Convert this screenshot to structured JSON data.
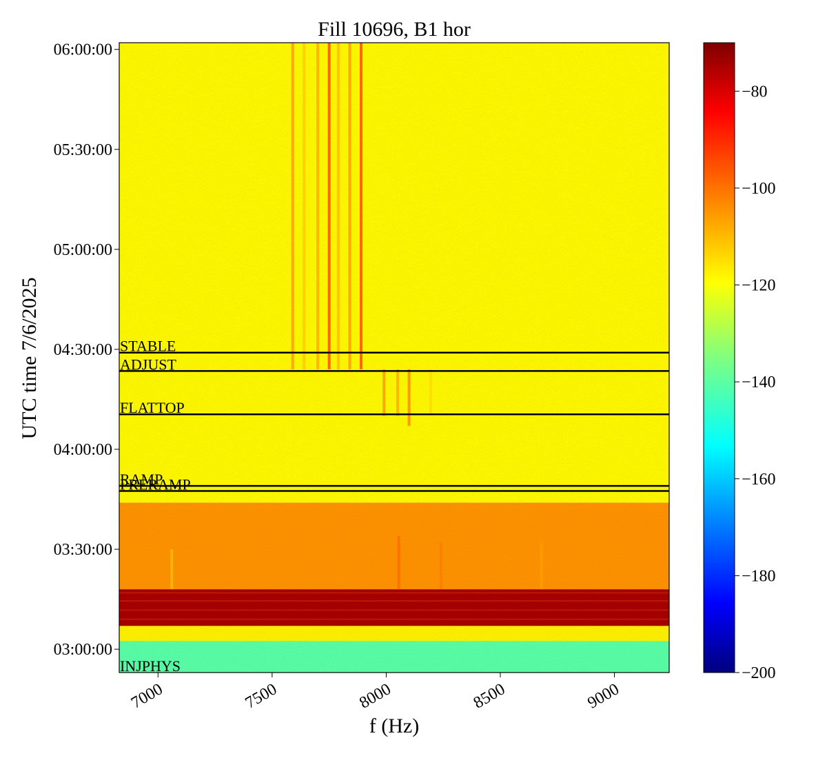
{
  "chart_data": {
    "type": "heatmap",
    "title": "Fill 10696, B1 hor",
    "xlabel": "f (Hz)",
    "ylabel": "UTC time 7/6/2025",
    "xlim": [
      6830,
      9240
    ],
    "ylim": [
      "02:53:00",
      "06:02:00"
    ],
    "x_ticks": [
      {
        "value": 7000,
        "label": "7000"
      },
      {
        "value": 7500,
        "label": "7500"
      },
      {
        "value": 8000,
        "label": "8000"
      },
      {
        "value": 8500,
        "label": "8500"
      },
      {
        "value": 9000,
        "label": "9000"
      }
    ],
    "y_ticks": [
      {
        "value": "03:00:00",
        "label": "03:00:00"
      },
      {
        "value": "03:30:00",
        "label": "03:30:00"
      },
      {
        "value": "04:00:00",
        "label": "04:00:00"
      },
      {
        "value": "04:30:00",
        "label": "04:30:00"
      },
      {
        "value": "05:00:00",
        "label": "05:00:00"
      },
      {
        "value": "05:30:00",
        "label": "05:30:00"
      },
      {
        "value": "06:00:00",
        "label": "06:00:00"
      }
    ],
    "colorbar": {
      "colormap": "jet",
      "range": [
        -200,
        -70
      ],
      "ticks": [
        {
          "value": -80,
          "label": "−80"
        },
        {
          "value": -100,
          "label": "−100"
        },
        {
          "value": -120,
          "label": "−120"
        },
        {
          "value": -140,
          "label": "−140"
        },
        {
          "value": -160,
          "label": "−160"
        },
        {
          "value": -180,
          "label": "−180"
        },
        {
          "value": -200,
          "label": "−200"
        }
      ]
    },
    "background_bands": [
      {
        "from": "02:53:00",
        "to": "03:02:30",
        "value": -140
      },
      {
        "from": "03:02:30",
        "to": "03:07:00",
        "value": -117
      },
      {
        "from": "03:07:00",
        "to": "03:18:00",
        "value": -75
      },
      {
        "from": "03:18:00",
        "to": "03:44:00",
        "value": -105
      },
      {
        "from": "03:44:00",
        "to": "06:02:00",
        "value": -118
      }
    ],
    "spectral_lines": [
      {
        "f": 7590,
        "from": "04:24:00",
        "to": "06:02:00",
        "value": -106
      },
      {
        "f": 7640,
        "from": "04:24:00",
        "to": "06:02:00",
        "value": -112
      },
      {
        "f": 7700,
        "from": "04:24:00",
        "to": "06:02:00",
        "value": -108
      },
      {
        "f": 7750,
        "from": "04:24:00",
        "to": "06:02:00",
        "value": -96
      },
      {
        "f": 7790,
        "from": "04:24:00",
        "to": "06:02:00",
        "value": -110
      },
      {
        "f": 7840,
        "from": "04:24:00",
        "to": "06:02:00",
        "value": -106
      },
      {
        "f": 7890,
        "from": "04:24:00",
        "to": "06:02:00",
        "value": -96
      },
      {
        "f": 7990,
        "from": "04:10:00",
        "to": "04:24:00",
        "value": -106
      },
      {
        "f": 8050,
        "from": "04:10:00",
        "to": "04:24:00",
        "value": -108
      },
      {
        "f": 8100,
        "from": "04:07:00",
        "to": "04:24:00",
        "value": -104
      },
      {
        "f": 8195,
        "from": "04:10:00",
        "to": "04:24:00",
        "value": -114
      },
      {
        "f": 8055,
        "from": "03:18:00",
        "to": "03:34:00",
        "value": -100
      },
      {
        "f": 8240,
        "from": "03:18:00",
        "to": "03:32:00",
        "value": -102
      },
      {
        "f": 8680,
        "from": "03:18:00",
        "to": "03:32:00",
        "value": -106
      },
      {
        "f": 7060,
        "from": "03:18:00",
        "to": "03:30:00",
        "value": -110
      }
    ],
    "annotations": [
      {
        "label": "STABLE",
        "time": "04:29:00"
      },
      {
        "label": "ADJUST",
        "time": "04:23:30"
      },
      {
        "label": "FLATTOP",
        "time": "04:10:30"
      },
      {
        "label": "RAMP",
        "time": "03:49:00"
      },
      {
        "label": "PRERAMP",
        "time": "03:47:30"
      },
      {
        "label": "INJPHYS",
        "time": "02:53:00"
      }
    ]
  }
}
